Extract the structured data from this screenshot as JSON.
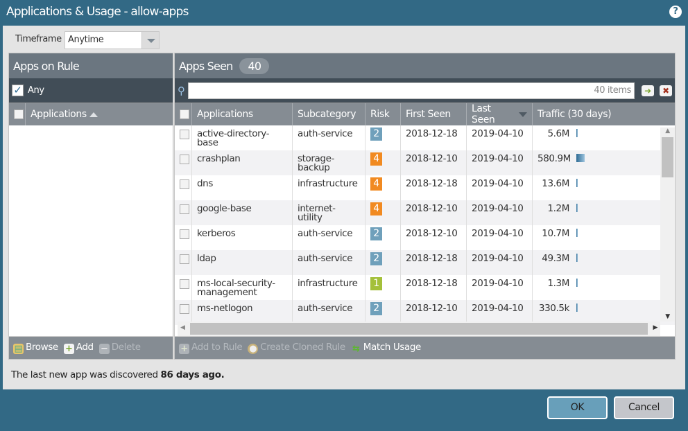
{
  "window": {
    "title": "Applications & Usage - allow-apps",
    "help_icon": "?"
  },
  "timeframe": {
    "label": "Timeframe",
    "value": "Anytime"
  },
  "left": {
    "title": "Apps on Rule",
    "any_label": "Any",
    "any_checked": true,
    "column": "Applications",
    "toolbar": {
      "browse": "Browse",
      "add": "Add",
      "delete": "Delete"
    }
  },
  "right": {
    "title": "Apps Seen",
    "count": "40",
    "search_placeholder": "40 items",
    "columns": [
      "Applications",
      "Subcategory",
      "Risk",
      "First Seen",
      "Last Seen",
      "Traffic (30 days)"
    ],
    "rows": [
      {
        "app": "active-directory-base",
        "sub": "auth-service",
        "risk": "2",
        "first": "2018-12-18",
        "last": "2019-04-10",
        "traffic": "5.6M",
        "bar": 0.01
      },
      {
        "app": "crashplan",
        "sub": "storage-backup",
        "risk": "4",
        "first": "2018-12-10",
        "last": "2019-04-10",
        "traffic": "580.9M",
        "bar": 1
      },
      {
        "app": "dns",
        "sub": "infrastructure",
        "risk": "4",
        "first": "2018-12-18",
        "last": "2019-04-10",
        "traffic": "13.6M",
        "bar": 0.02
      },
      {
        "app": "google-base",
        "sub": "internet-utility",
        "risk": "4",
        "first": "2018-12-10",
        "last": "2019-04-10",
        "traffic": "1.2M",
        "bar": 0.002
      },
      {
        "app": "kerberos",
        "sub": "auth-service",
        "risk": "2",
        "first": "2018-12-10",
        "last": "2019-04-10",
        "traffic": "10.7M",
        "bar": 0.018
      },
      {
        "app": "ldap",
        "sub": "auth-service",
        "risk": "2",
        "first": "2018-12-18",
        "last": "2019-04-10",
        "traffic": "49.3M",
        "bar": 0.085
      },
      {
        "app": "ms-local-security-management",
        "sub": "infrastructure",
        "risk": "1",
        "first": "2018-12-18",
        "last": "2019-04-10",
        "traffic": "1.3M",
        "bar": 0.002
      },
      {
        "app": "ms-netlogon",
        "sub": "auth-service",
        "risk": "2",
        "first": "2018-12-10",
        "last": "2019-04-10",
        "traffic": "330.5k",
        "bar": 0.001
      }
    ],
    "toolbar": {
      "add_to_rule": "Add to Rule",
      "create_cloned": "Create Cloned Rule",
      "match_usage": "Match Usage"
    }
  },
  "risk_colors": {
    "1": "#a4c03a",
    "2": "#6fa0bb",
    "4": "#f18a21"
  },
  "status": {
    "prefix": "The last new app was discovered",
    "bold": "86 days ago."
  },
  "buttons": {
    "ok": "OK",
    "cancel": "Cancel"
  }
}
